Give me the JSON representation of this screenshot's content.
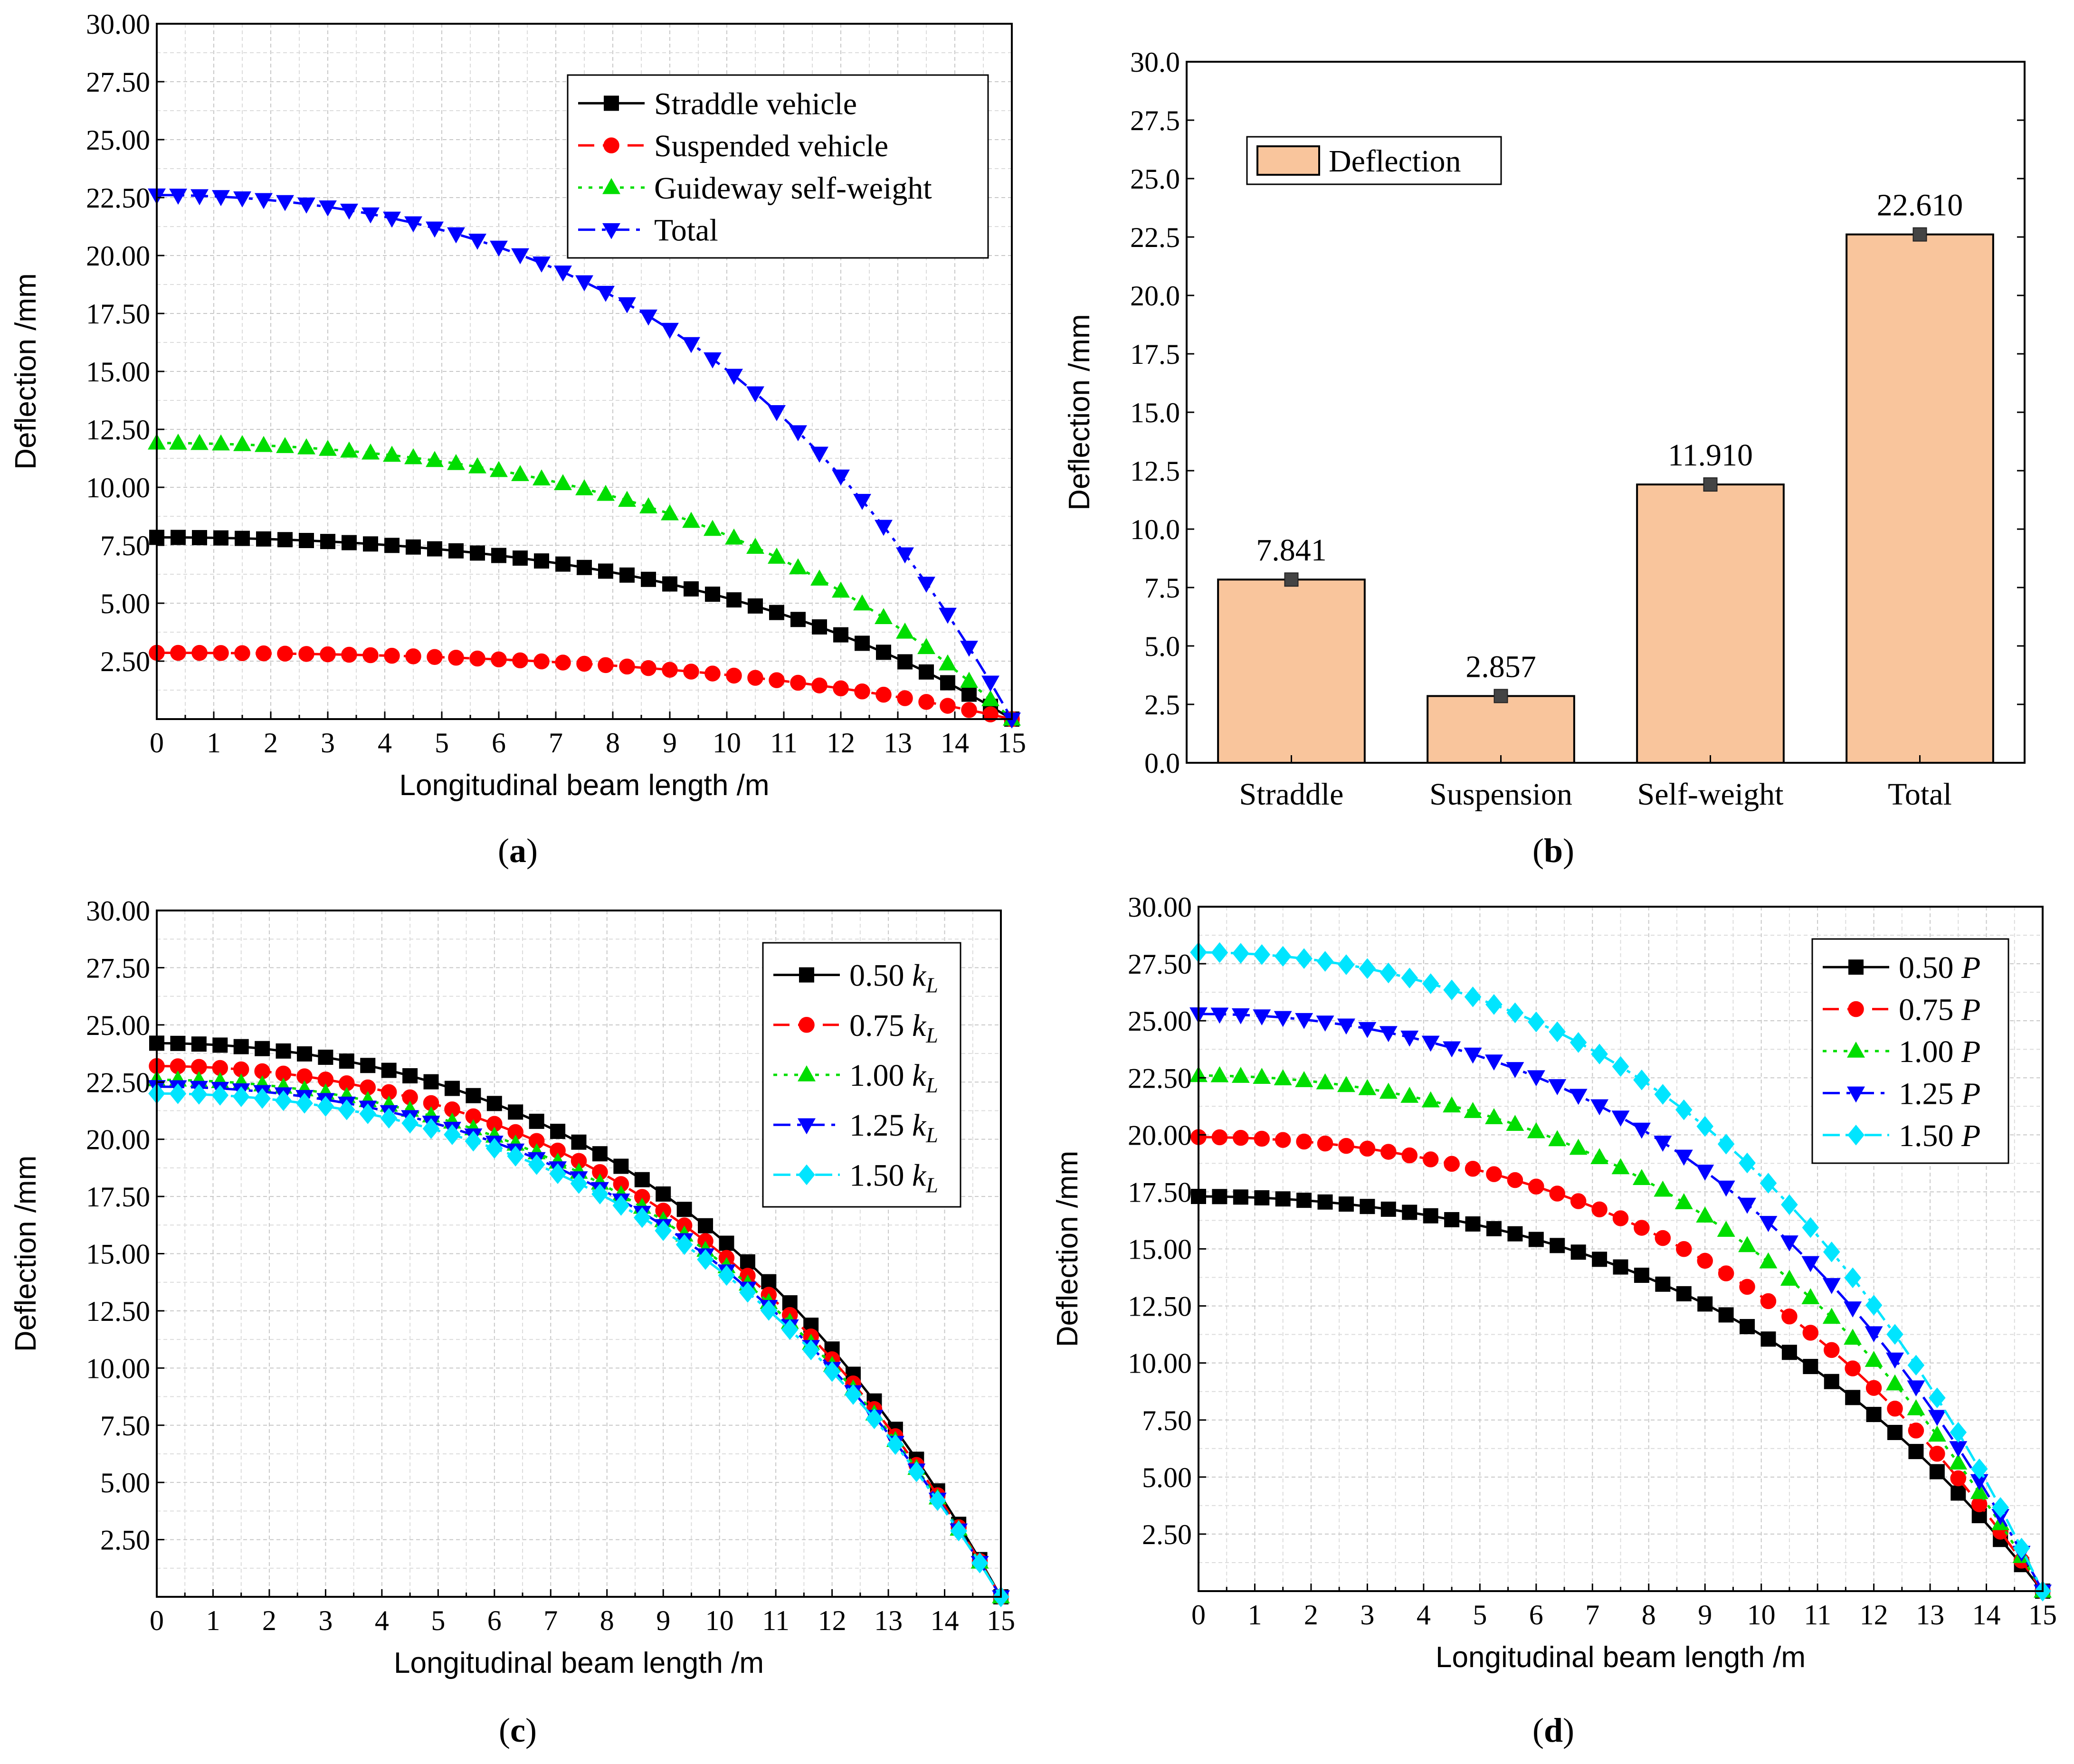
{
  "chart_data": [
    {
      "id": "a",
      "type": "line",
      "panel_label": "a",
      "xlabel": "Longitudinal beam length /m",
      "ylabel": "Deflection /mm",
      "xlim": [
        0,
        15
      ],
      "ylim": [
        0,
        30
      ],
      "xticks": [
        "0",
        "1",
        "2",
        "3",
        "4",
        "5",
        "6",
        "7",
        "8",
        "9",
        "10",
        "11",
        "12",
        "13",
        "14",
        "15"
      ],
      "yticks": [
        "2.50",
        "5.00",
        "7.50",
        "10.00",
        "12.50",
        "15.00",
        "17.50",
        "20.00",
        "22.50",
        "25.00",
        "27.50",
        "30.00"
      ],
      "grid": true,
      "legend_position": "top-right",
      "series": [
        {
          "name": "Straddle vehicle",
          "max": 7.84,
          "color": "#000000",
          "marker": "square",
          "dash": "solid"
        },
        {
          "name": "Suspended vehicle",
          "max": 2.86,
          "color": "#ff0000",
          "marker": "circle",
          "dash": "dash"
        },
        {
          "name": "Guideway self-weight",
          "max": 11.91,
          "color": "#00dd00",
          "marker": "triangle-up",
          "dash": "dot"
        },
        {
          "name": "Total",
          "max": 22.61,
          "color": "#0000ff",
          "marker": "triangle-down",
          "dash": "dashdot"
        }
      ]
    },
    {
      "id": "b",
      "type": "bar",
      "panel_label": "b",
      "xlabel": "",
      "ylabel": "Deflection /mm",
      "ylim": [
        0,
        30
      ],
      "yticks": [
        "0.0",
        "2.5",
        "5.0",
        "7.5",
        "10.0",
        "12.5",
        "15.0",
        "17.5",
        "20.0",
        "22.5",
        "25.0",
        "27.5",
        "30.0"
      ],
      "categories": [
        "Straddle",
        "Suspension",
        "Self-weight",
        "Total"
      ],
      "values": [
        7.841,
        2.857,
        11.91,
        22.61
      ],
      "value_labels": [
        "7.841",
        "2.857",
        "11.910",
        "22.610"
      ],
      "legend": "Deflection",
      "legend_position": "top-left",
      "bar_color": "#f9c59c",
      "grid": false
    },
    {
      "id": "c",
      "type": "line",
      "panel_label": "c",
      "xlabel": "Longitudinal beam length /m",
      "ylabel": "Deflection /mm",
      "xlim": [
        0,
        15
      ],
      "ylim": [
        0,
        30
      ],
      "xticks": [
        "0",
        "1",
        "2",
        "3",
        "4",
        "5",
        "6",
        "7",
        "8",
        "9",
        "10",
        "11",
        "12",
        "13",
        "14",
        "15"
      ],
      "yticks": [
        "2.50",
        "5.00",
        "7.50",
        "10.00",
        "12.50",
        "15.00",
        "17.50",
        "20.00",
        "22.50",
        "25.00",
        "27.50",
        "30.00"
      ],
      "grid": true,
      "legend_position": "top-right",
      "series": [
        {
          "name": "0.50",
          "sym": "k",
          "sub": "L",
          "max": 24.2,
          "color": "#000000",
          "marker": "square",
          "dash": "solid"
        },
        {
          "name": "0.75",
          "sym": "k",
          "sub": "L",
          "max": 23.2,
          "color": "#ff0000",
          "marker": "circle",
          "dash": "dash"
        },
        {
          "name": "1.00",
          "sym": "k",
          "sub": "L",
          "max": 22.6,
          "color": "#00dd00",
          "marker": "triangle-up",
          "dash": "dot"
        },
        {
          "name": "1.25",
          "sym": "k",
          "sub": "L",
          "max": 22.3,
          "color": "#0000ff",
          "marker": "triangle-down",
          "dash": "dashdot"
        },
        {
          "name": "1.50",
          "sym": "k",
          "sub": "L",
          "max": 22.0,
          "color": "#00e5ff",
          "marker": "diamond",
          "dash": "dashdotdot"
        }
      ]
    },
    {
      "id": "d",
      "type": "line",
      "panel_label": "d",
      "xlabel": "Longitudinal beam length /m",
      "ylabel": "Deflection /mm",
      "xlim": [
        0,
        15
      ],
      "ylim": [
        0,
        30
      ],
      "xticks": [
        "0",
        "1",
        "2",
        "3",
        "4",
        "5",
        "6",
        "7",
        "8",
        "9",
        "10",
        "11",
        "12",
        "13",
        "14",
        "15"
      ],
      "yticks": [
        "2.50",
        "5.00",
        "7.50",
        "10.00",
        "12.50",
        "15.00",
        "17.50",
        "20.00",
        "22.50",
        "25.00",
        "27.50",
        "30.00"
      ],
      "grid": true,
      "legend_position": "top-right",
      "series": [
        {
          "name": "0.50",
          "sym": "P",
          "max": 17.3,
          "color": "#000000",
          "marker": "square",
          "dash": "solid"
        },
        {
          "name": "0.75",
          "sym": "P",
          "max": 19.9,
          "color": "#ff0000",
          "marker": "circle",
          "dash": "dash"
        },
        {
          "name": "1.00",
          "sym": "P",
          "max": 22.6,
          "color": "#00dd00",
          "marker": "triangle-up",
          "dash": "dot"
        },
        {
          "name": "1.25",
          "sym": "P",
          "max": 25.3,
          "color": "#0000ff",
          "marker": "triangle-down",
          "dash": "dashdot"
        },
        {
          "name": "1.50",
          "sym": "P",
          "max": 28.0,
          "color": "#00e5ff",
          "marker": "diamond",
          "dash": "dashdotdot"
        }
      ]
    }
  ]
}
